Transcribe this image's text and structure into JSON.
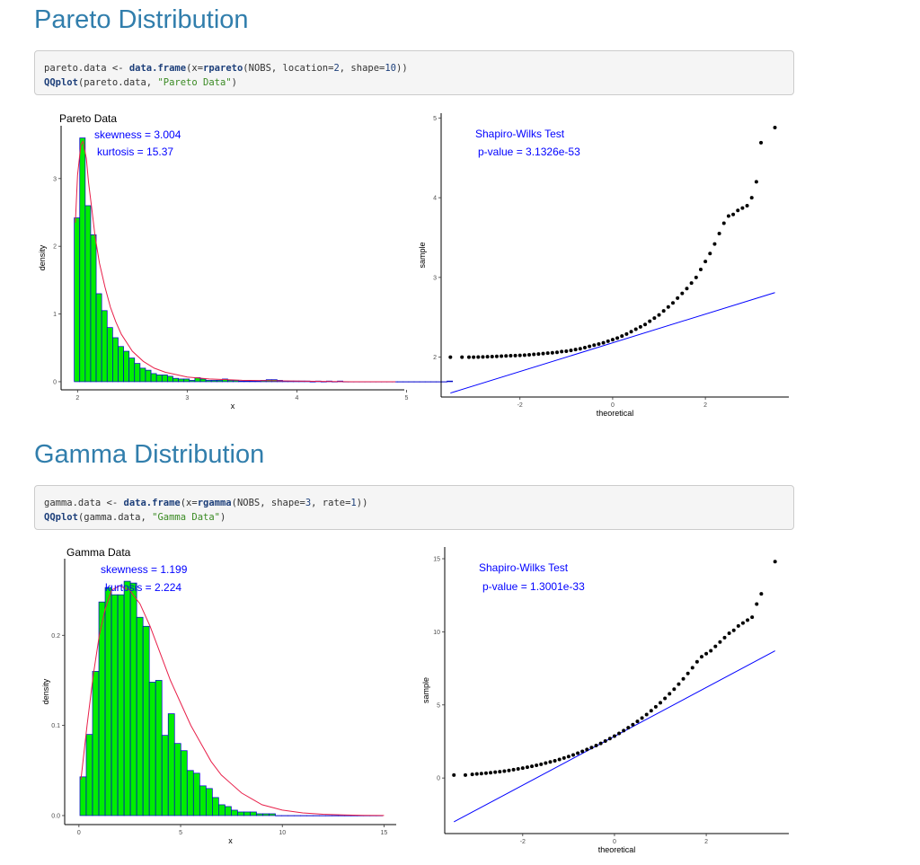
{
  "sections": [
    {
      "title": "Pareto Distribution",
      "code": {
        "line1": {
          "assign": "pareto.data",
          "arrow": " <- ",
          "fn1": "data.frame",
          "open": "(x=",
          "fn2": "rpareto",
          "args": "(NOBS, location=",
          "n1": "2",
          "mid": ", shape=",
          "n2": "10",
          "close": "))"
        },
        "line2": {
          "fn": "QQplot",
          "args": "(pareto.data, ",
          "str": "\"Pareto Data\"",
          "close": ")"
        }
      }
    },
    {
      "title": "Gamma Distribution",
      "code": {
        "line1": {
          "assign": "gamma.data",
          "arrow": " <- ",
          "fn1": "data.frame",
          "open": "(x=",
          "fn2": "rgamma",
          "args": "(NOBS, shape=",
          "n1": "3",
          "mid": ", rate=",
          "n2": "1",
          "close": "))"
        },
        "line2": {
          "fn": "QQplot",
          "args": "(gamma.data, ",
          "str": "\"Gamma Data\"",
          "close": ")"
        }
      }
    }
  ],
  "colors": {
    "bar_fill": "#00ee00",
    "bar_stroke": "#0000cc",
    "density_line": "#e8204a",
    "qq_line": "#0000ff",
    "points": "#000000",
    "annotation": "#0000ff",
    "section_title": "#317eac"
  },
  "chart_data": [
    {
      "type": "bar",
      "title": "Pareto Data",
      "xlabel": "x",
      "ylabel": "density",
      "xlim": [
        1.85,
        4.98
      ],
      "ylim": [
        -0.12,
        3.78
      ],
      "xticks": [
        "2",
        "3",
        "4",
        "5"
      ],
      "yticks": [
        "0",
        "1",
        "2",
        "3"
      ],
      "annotations": {
        "skewness": "skewness =  3.004",
        "kurtosis": "kurtosis =  15.37"
      },
      "bins": {
        "start": 1.97,
        "width": 0.05
      },
      "values": [
        2.42,
        3.6,
        2.6,
        2.17,
        1.3,
        1.05,
        0.8,
        0.65,
        0.52,
        0.45,
        0.35,
        0.27,
        0.2,
        0.17,
        0.12,
        0.1,
        0.1,
        0.08,
        0.05,
        0.04,
        0.04,
        0.02,
        0.06,
        0.04,
        0.02,
        0.02,
        0.02,
        0.04,
        0.02,
        0.02,
        0.01,
        0.01,
        0.01,
        0.01,
        0.02,
        0.03,
        0.03,
        0.02,
        0.01,
        0.01,
        0.01,
        0.01,
        0.01,
        0.0,
        0.01,
        0.0,
        0.01,
        0.0,
        0.01,
        0.0,
        0.0,
        0.0,
        0.0,
        0.0,
        0.0,
        0.0,
        0.0,
        0.0,
        0.0,
        0.0,
        0.0,
        0.0,
        0.0,
        0.0,
        0.0,
        0.0,
        0.0,
        0.0,
        0.01
      ],
      "density_curve": {
        "x": [
          1.98,
          2.0,
          2.03,
          2.05,
          2.08,
          2.1,
          2.13,
          2.16,
          2.2,
          2.25,
          2.3,
          2.35,
          2.4,
          2.5,
          2.6,
          2.7,
          2.8,
          3.0,
          3.2,
          3.5,
          4.0,
          4.5,
          4.9
        ],
        "y": [
          2.35,
          3.05,
          3.5,
          3.55,
          3.3,
          2.95,
          2.55,
          2.15,
          1.75,
          1.4,
          1.1,
          0.88,
          0.7,
          0.45,
          0.3,
          0.2,
          0.14,
          0.07,
          0.04,
          0.02,
          0.01,
          0.0,
          0.0
        ]
      }
    },
    {
      "type": "scatter",
      "title": "",
      "xlabel": "theoretical",
      "ylabel": "sample",
      "xlim": [
        -3.7,
        3.8
      ],
      "ylim": [
        1.5,
        5.06
      ],
      "xticks": [
        "-2",
        "0",
        "2"
      ],
      "yticks": [
        "2",
        "3",
        "4",
        "5"
      ],
      "annotations": {
        "test": "Shapiro-Wilks Test",
        "pvalue": "p-value =  3.1326e-53"
      },
      "qq_line": {
        "x": [
          -3.5,
          3.5
        ],
        "y": [
          1.55,
          2.81
        ]
      },
      "points": {
        "x": [
          -3.5,
          -3.25,
          -3.1,
          -3.0,
          -2.9,
          -2.8,
          -2.7,
          -2.6,
          -2.5,
          -2.4,
          -2.3,
          -2.2,
          -2.1,
          -2.0,
          -1.9,
          -1.8,
          -1.7,
          -1.6,
          -1.5,
          -1.4,
          -1.3,
          -1.2,
          -1.1,
          -1.0,
          -0.9,
          -0.8,
          -0.7,
          -0.6,
          -0.5,
          -0.4,
          -0.3,
          -0.2,
          -0.1,
          0.0,
          0.1,
          0.2,
          0.3,
          0.4,
          0.5,
          0.6,
          0.7,
          0.8,
          0.9,
          1.0,
          1.1,
          1.2,
          1.3,
          1.4,
          1.5,
          1.6,
          1.7,
          1.8,
          1.9,
          2.0,
          2.1,
          2.2,
          2.3,
          2.4,
          2.5,
          2.6,
          2.7,
          2.8,
          2.9,
          3.0,
          3.1,
          3.2,
          3.5
        ],
        "y": [
          2.0,
          2.0,
          2.0,
          2.0,
          2.002,
          2.003,
          2.005,
          2.007,
          2.01,
          2.012,
          2.015,
          2.018,
          2.02,
          2.022,
          2.025,
          2.03,
          2.035,
          2.04,
          2.045,
          2.05,
          2.055,
          2.06,
          2.07,
          2.075,
          2.085,
          2.095,
          2.105,
          2.12,
          2.135,
          2.15,
          2.165,
          2.18,
          2.2,
          2.22,
          2.24,
          2.265,
          2.29,
          2.32,
          2.35,
          2.38,
          2.41,
          2.45,
          2.49,
          2.53,
          2.58,
          2.63,
          2.68,
          2.74,
          2.8,
          2.86,
          2.93,
          3.0,
          3.1,
          3.2,
          3.3,
          3.42,
          3.55,
          3.68,
          3.77,
          3.79,
          3.84,
          3.87,
          3.9,
          4.0,
          4.2,
          4.69,
          4.88
        ]
      }
    },
    {
      "type": "bar",
      "title": "Gamma Data",
      "xlabel": "x",
      "ylabel": "density",
      "xlim": [
        -0.7,
        15.6
      ],
      "ylim": [
        -0.01,
        0.285
      ],
      "xticks": [
        "0",
        "5",
        "10",
        "15"
      ],
      "yticks": [
        "0.0",
        "0.1",
        "0.2"
      ],
      "annotations": {
        "skewness": "skewness =  1.199",
        "kurtosis": "kurtosis =  2.224"
      },
      "bins": {
        "start": 0.05,
        "width": 0.31
      },
      "values": [
        0.043,
        0.09,
        0.16,
        0.237,
        0.253,
        0.245,
        0.245,
        0.26,
        0.258,
        0.22,
        0.21,
        0.148,
        0.15,
        0.089,
        0.113,
        0.08,
        0.072,
        0.05,
        0.047,
        0.033,
        0.03,
        0.02,
        0.012,
        0.01,
        0.006,
        0.004,
        0.004,
        0.004,
        0.002,
        0.002,
        0.002,
        0.0,
        0.0,
        0.0,
        0.0,
        0.0,
        0.0,
        0.0,
        0.0,
        0.0,
        0.0,
        0.0,
        0.0,
        0.0,
        0.0,
        0.0,
        0.0,
        0.0
      ],
      "density_curve": {
        "x": [
          0.1,
          0.4,
          0.7,
          1.0,
          1.3,
          1.6,
          2.0,
          2.5,
          3.0,
          3.5,
          4.0,
          4.5,
          5.0,
          5.5,
          6.0,
          6.5,
          7.0,
          8.0,
          9.0,
          10.0,
          11.0,
          12.0,
          13.0,
          14.0,
          15.0
        ],
        "y": [
          0.04,
          0.1,
          0.155,
          0.2,
          0.23,
          0.25,
          0.255,
          0.25,
          0.235,
          0.21,
          0.18,
          0.15,
          0.125,
          0.1,
          0.08,
          0.06,
          0.045,
          0.025,
          0.012,
          0.006,
          0.003,
          0.0015,
          0.0008,
          0.0003,
          0.0001
        ]
      }
    },
    {
      "type": "scatter",
      "title": "",
      "xlabel": "theoretical",
      "ylabel": "sample",
      "xlim": [
        -3.7,
        3.8
      ],
      "ylim": [
        -3.8,
        15.8
      ],
      "xticks": [
        "-2",
        "0",
        "2"
      ],
      "yticks": [
        "0",
        "5",
        "10",
        "15"
      ],
      "annotations": {
        "test": "Shapiro-Wilks Test",
        "pvalue": "p-value =  1.3001e-33"
      },
      "qq_line": {
        "x": [
          -3.5,
          3.5
        ],
        "y": [
          -3.0,
          8.7
        ]
      },
      "points": {
        "x": [
          -3.5,
          -3.25,
          -3.1,
          -3.0,
          -2.9,
          -2.8,
          -2.7,
          -2.6,
          -2.5,
          -2.4,
          -2.3,
          -2.2,
          -2.1,
          -2.0,
          -1.9,
          -1.8,
          -1.7,
          -1.6,
          -1.5,
          -1.4,
          -1.3,
          -1.2,
          -1.1,
          -1.0,
          -0.9,
          -0.8,
          -0.7,
          -0.6,
          -0.5,
          -0.4,
          -0.3,
          -0.2,
          -0.1,
          0.0,
          0.1,
          0.2,
          0.3,
          0.4,
          0.5,
          0.6,
          0.7,
          0.8,
          0.9,
          1.0,
          1.1,
          1.2,
          1.3,
          1.4,
          1.5,
          1.6,
          1.7,
          1.8,
          1.9,
          2.0,
          2.1,
          2.2,
          2.3,
          2.4,
          2.5,
          2.6,
          2.7,
          2.8,
          2.9,
          3.0,
          3.1,
          3.2,
          3.5
        ],
        "y": [
          0.2,
          0.2,
          0.25,
          0.28,
          0.3,
          0.33,
          0.36,
          0.4,
          0.43,
          0.47,
          0.52,
          0.57,
          0.62,
          0.68,
          0.74,
          0.8,
          0.87,
          0.94,
          1.02,
          1.1,
          1.18,
          1.27,
          1.37,
          1.47,
          1.58,
          1.7,
          1.82,
          1.95,
          2.08,
          2.22,
          2.37,
          2.53,
          2.7,
          2.87,
          3.05,
          3.24,
          3.44,
          3.65,
          3.87,
          4.1,
          4.34,
          4.6,
          4.87,
          5.15,
          5.45,
          5.76,
          6.08,
          6.42,
          6.78,
          7.15,
          7.54,
          7.95,
          8.3,
          8.5,
          8.7,
          9.0,
          9.3,
          9.6,
          9.9,
          10.1,
          10.4,
          10.6,
          10.8,
          11.0,
          11.9,
          12.6,
          14.8
        ]
      }
    }
  ]
}
